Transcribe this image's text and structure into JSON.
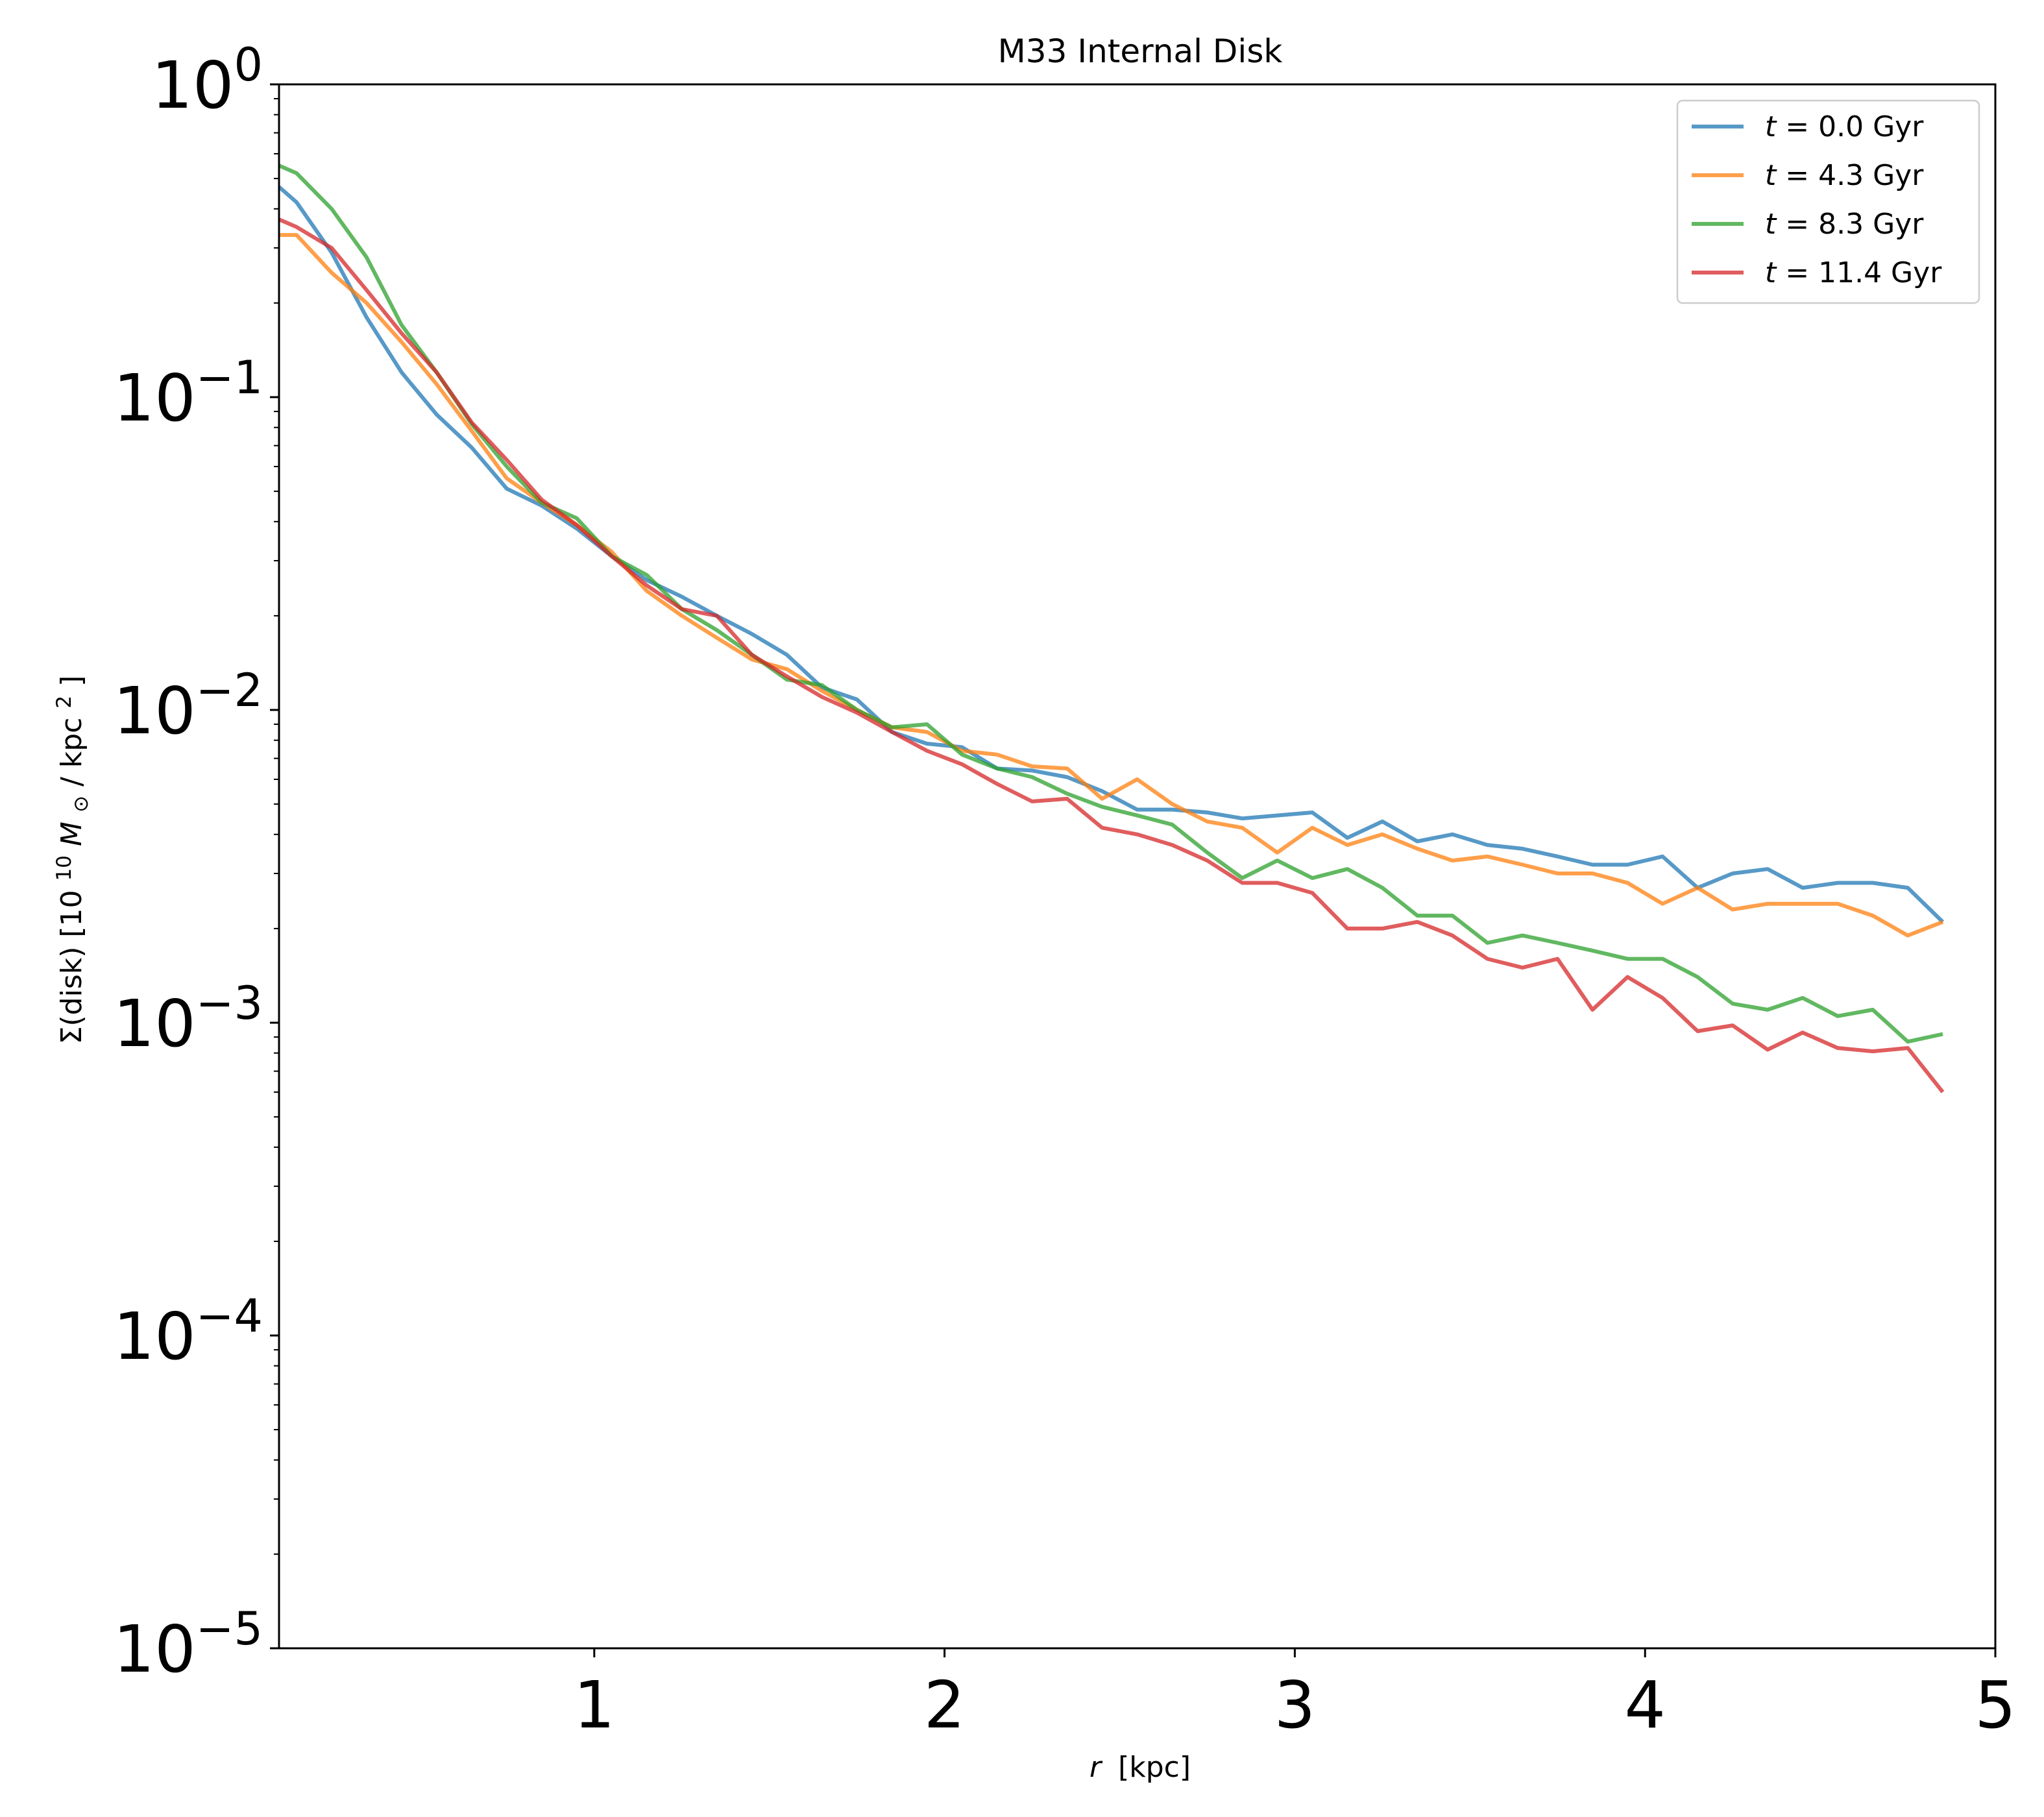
{
  "chart_data": {
    "type": "line",
    "title": "M33 Internal Disk",
    "xlabel": {
      "symbol": "r",
      "text": "[kpc]"
    },
    "ylabel": {
      "prefix": "Σ(disk) [10",
      "sup": "10",
      "mid": "M",
      "sub": "⊙",
      "unit": " / kpc",
      "unit_sup": "2",
      "suffix": "]"
    },
    "xlim": [
      0.1,
      5.0
    ],
    "ylim": [
      1e-05,
      1
    ],
    "yscale": "log",
    "x_ticks": [
      {
        "value": 1,
        "label": "1"
      },
      {
        "value": 2,
        "label": "2"
      },
      {
        "value": 3,
        "label": "3"
      },
      {
        "value": 4,
        "label": "4"
      },
      {
        "value": 5,
        "label": "5"
      }
    ],
    "y_ticks": [
      {
        "value": 1,
        "base": "10",
        "exp": "0"
      },
      {
        "value": 0.1,
        "base": "10",
        "exp": "−1"
      },
      {
        "value": 0.01,
        "base": "10",
        "exp": "−2"
      },
      {
        "value": 0.001,
        "base": "10",
        "exp": "−3"
      },
      {
        "value": 0.0001,
        "base": "10",
        "exp": "−4"
      },
      {
        "value": 1e-05,
        "base": "10",
        "exp": "−5"
      }
    ],
    "grid": false,
    "legend_position": "top-right",
    "x": [
      0.1,
      0.15,
      0.25,
      0.35,
      0.45,
      0.55,
      0.65,
      0.75,
      0.85,
      0.95,
      1.05,
      1.15,
      1.25,
      1.35,
      1.45,
      1.55,
      1.65,
      1.75,
      1.85,
      1.95,
      2.05,
      2.15,
      2.25,
      2.35,
      2.45,
      2.55,
      2.65,
      2.75,
      2.85,
      2.95,
      3.05,
      3.15,
      3.25,
      3.35,
      3.45,
      3.55,
      3.65,
      3.75,
      3.85,
      3.95,
      4.05,
      4.15,
      4.25,
      4.35,
      4.45,
      4.55,
      4.65,
      4.75,
      4.85
    ],
    "series": [
      {
        "name_symbol": "t",
        "name_value": " = 0.0 Gyr",
        "color": "#1f77b4",
        "values": [
          0.47,
          0.42,
          0.29,
          0.18,
          0.12,
          0.088,
          0.069,
          0.051,
          0.045,
          0.038,
          0.031,
          0.026,
          0.023,
          0.02,
          0.0175,
          0.015,
          0.0118,
          0.0108,
          0.0085,
          0.0078,
          0.0076,
          0.0065,
          0.0064,
          0.0061,
          0.0055,
          0.0048,
          0.0048,
          0.0047,
          0.0045,
          0.0046,
          0.0047,
          0.0039,
          0.0044,
          0.0038,
          0.004,
          0.0037,
          0.0036,
          0.0034,
          0.0032,
          0.0032,
          0.0034,
          0.0027,
          0.003,
          0.0031,
          0.0027,
          0.0028,
          0.0028,
          0.0027,
          0.0021
        ]
      },
      {
        "name_symbol": "t",
        "name_value": " = 4.3 Gyr",
        "color": "#ff7f0e",
        "values": [
          0.33,
          0.33,
          0.25,
          0.2,
          0.15,
          0.11,
          0.078,
          0.055,
          0.046,
          0.039,
          0.032,
          0.024,
          0.02,
          0.017,
          0.0145,
          0.0135,
          0.0115,
          0.01,
          0.0088,
          0.0085,
          0.0074,
          0.0072,
          0.0066,
          0.0065,
          0.0052,
          0.006,
          0.005,
          0.0044,
          0.0042,
          0.0035,
          0.0042,
          0.0037,
          0.004,
          0.0036,
          0.0033,
          0.0034,
          0.0032,
          0.003,
          0.003,
          0.0028,
          0.0024,
          0.0027,
          0.0023,
          0.0024,
          0.0024,
          0.0024,
          0.0022,
          0.0019,
          0.0021
        ]
      },
      {
        "name_symbol": "t",
        "name_value": " = 8.3 Gyr",
        "color": "#2ca02c",
        "values": [
          0.55,
          0.52,
          0.4,
          0.28,
          0.17,
          0.12,
          0.082,
          0.06,
          0.046,
          0.041,
          0.031,
          0.027,
          0.021,
          0.018,
          0.015,
          0.0125,
          0.012,
          0.01,
          0.0088,
          0.009,
          0.0072,
          0.0065,
          0.0061,
          0.0054,
          0.0049,
          0.0046,
          0.0043,
          0.0035,
          0.0029,
          0.0033,
          0.0029,
          0.0031,
          0.0027,
          0.0022,
          0.0022,
          0.0018,
          0.0019,
          0.0018,
          0.0017,
          0.0016,
          0.0016,
          0.0014,
          0.00115,
          0.0011,
          0.0012,
          0.00105,
          0.0011,
          0.00087,
          0.00092
        ]
      },
      {
        "name_symbol": "t",
        "name_value": " = 11.4 Gyr",
        "color": "#d62728",
        "values": [
          0.37,
          0.35,
          0.3,
          0.22,
          0.16,
          0.12,
          0.083,
          0.063,
          0.047,
          0.039,
          0.031,
          0.025,
          0.021,
          0.02,
          0.015,
          0.0128,
          0.011,
          0.0098,
          0.0085,
          0.0074,
          0.0067,
          0.0058,
          0.0051,
          0.0052,
          0.0042,
          0.004,
          0.0037,
          0.0033,
          0.0028,
          0.0028,
          0.0026,
          0.002,
          0.002,
          0.0021,
          0.0019,
          0.0016,
          0.0015,
          0.0016,
          0.0011,
          0.0014,
          0.0012,
          0.00094,
          0.00098,
          0.00082,
          0.00093,
          0.00083,
          0.00081,
          0.00083,
          0.0006
        ]
      }
    ]
  }
}
